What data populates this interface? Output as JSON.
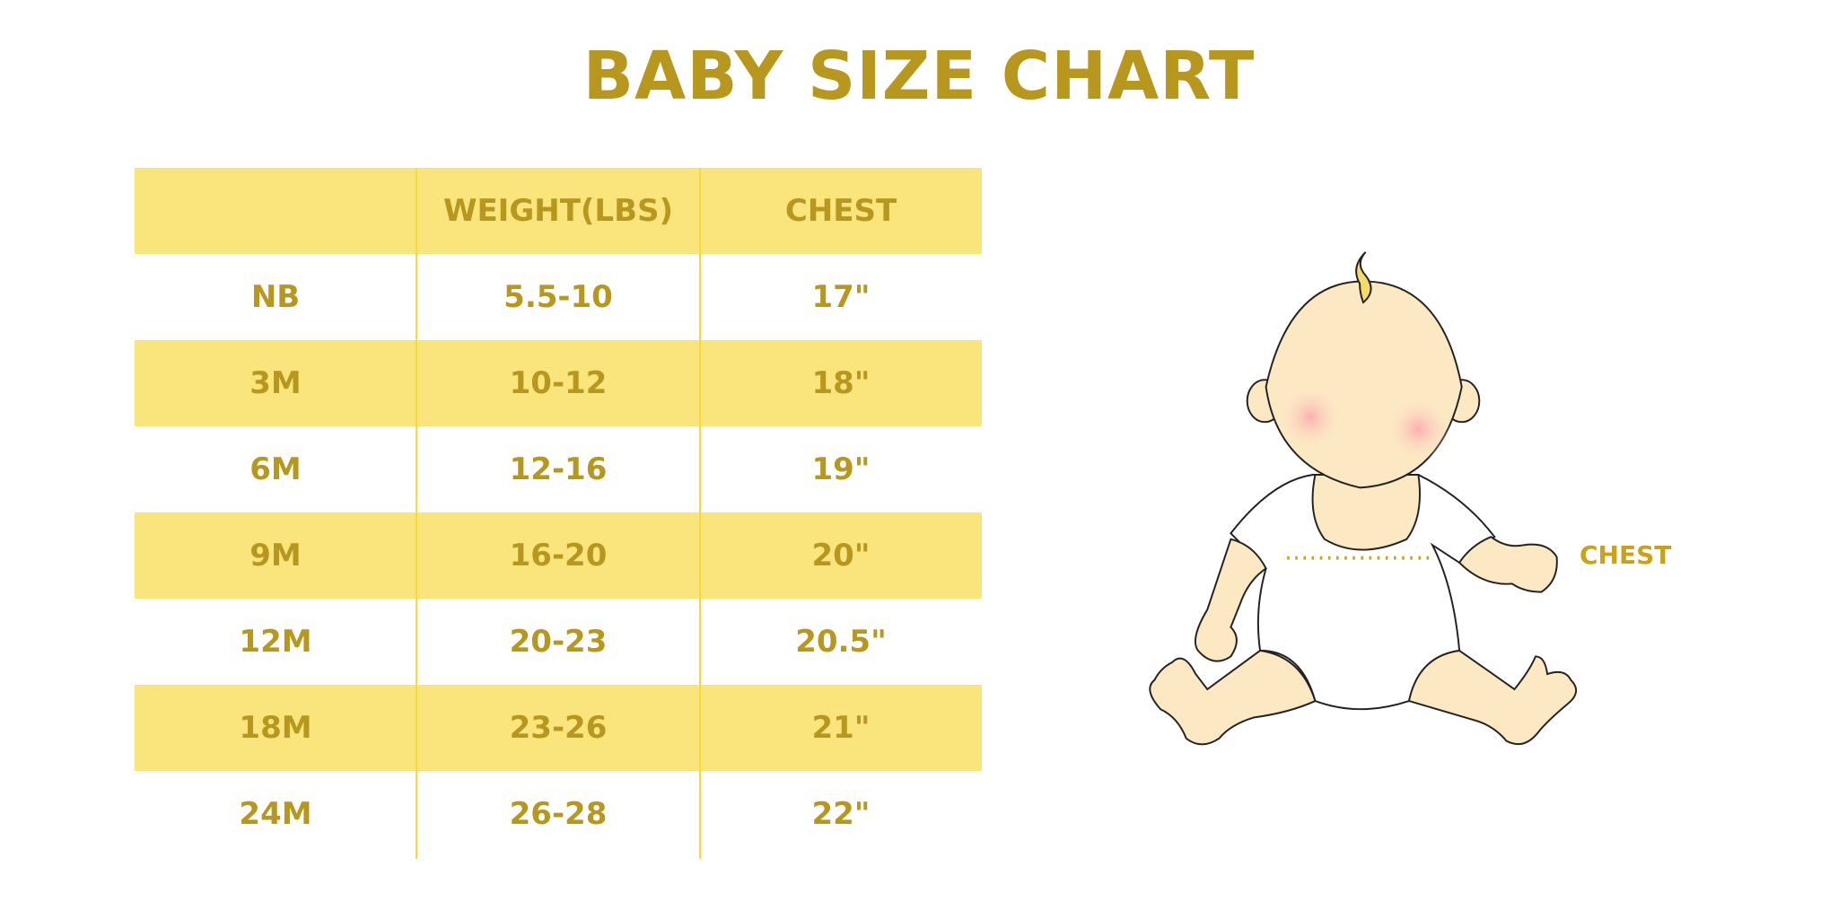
{
  "title": "BABY SIZE CHART",
  "table": {
    "headers": [
      "",
      "WEIGHT(LBS)",
      "CHEST"
    ],
    "rows": [
      [
        "NB",
        "5.5-10",
        "17\""
      ],
      [
        "3M",
        "10-12",
        "18\""
      ],
      [
        "6M",
        "12-16",
        "19\""
      ],
      [
        "9M",
        "16-20",
        "20\""
      ],
      [
        "12M",
        "20-23",
        "20.5\""
      ],
      [
        "18M",
        "23-26",
        "21\""
      ],
      [
        "24M",
        "26-28",
        "22\""
      ]
    ]
  },
  "illustration": {
    "chest_label": "CHEST"
  },
  "colors": {
    "text": "#B8971F",
    "band": "#FAE57D",
    "divider": "#F7D93A",
    "skin": "#FDE8C4",
    "cheek": "#F9B7B7"
  }
}
